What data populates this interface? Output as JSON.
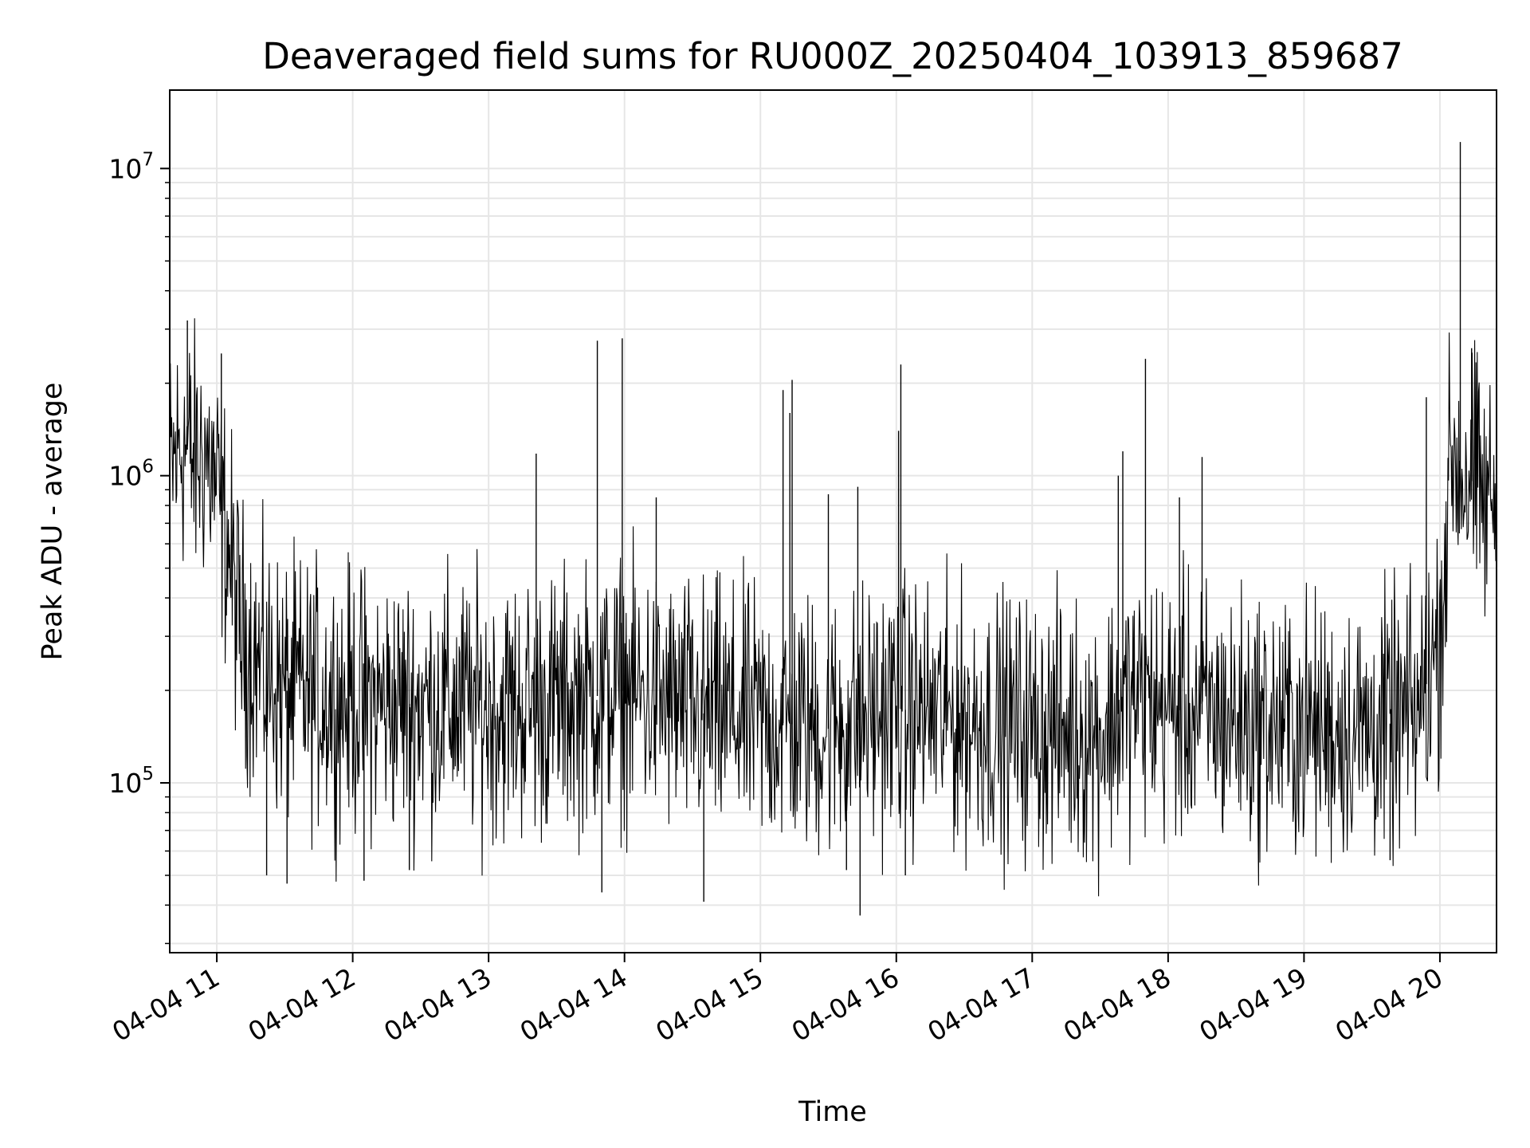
{
  "chart_data": {
    "type": "line",
    "title": "Deaveraged field sums for RU000Z_20250404_103913_859687",
    "xlabel": "Time",
    "ylabel": "Peak ADU - average",
    "y_scale": "log",
    "xlim": [
      "2025-04-04 10:39:13",
      "2025-04-04 20:25:00"
    ],
    "ylim": [
      28000,
      18000000
    ],
    "grid": true,
    "line_color": "#000000",
    "x_ticks": [
      {
        "time": "2025-04-04 11:00",
        "label": "04-04 11"
      },
      {
        "time": "2025-04-04 12:00",
        "label": "04-04 12"
      },
      {
        "time": "2025-04-04 13:00",
        "label": "04-04 13"
      },
      {
        "time": "2025-04-04 14:00",
        "label": "04-04 14"
      },
      {
        "time": "2025-04-04 15:00",
        "label": "04-04 15"
      },
      {
        "time": "2025-04-04 16:00",
        "label": "04-04 16"
      },
      {
        "time": "2025-04-04 17:00",
        "label": "04-04 17"
      },
      {
        "time": "2025-04-04 18:00",
        "label": "04-04 18"
      },
      {
        "time": "2025-04-04 19:00",
        "label": "04-04 19"
      },
      {
        "time": "2025-04-04 20:00",
        "label": "04-04 20"
      }
    ],
    "y_ticks": [
      {
        "value": 100000,
        "base": "10",
        "exponent": "5"
      },
      {
        "value": 1000000,
        "base": "10",
        "exponent": "6"
      },
      {
        "value": 10000000,
        "base": "10",
        "exponent": "7"
      }
    ],
    "series": [
      {
        "points": [
          {
            "time": "2025-04-04 10:39",
            "value": 1000000
          },
          {
            "time": "2025-04-04 10:45",
            "value": 1300000
          },
          {
            "time": "2025-04-04 10:50",
            "value": 1100000
          },
          {
            "time": "2025-04-04 10:55",
            "value": 1200000
          },
          {
            "time": "2025-04-04 11:00",
            "value": 900000
          },
          {
            "time": "2025-04-04 11:05",
            "value": 600000
          },
          {
            "time": "2025-04-04 11:10",
            "value": 320000
          },
          {
            "time": "2025-04-04 11:20",
            "value": 230000
          },
          {
            "time": "2025-04-04 11:30",
            "value": 200000
          },
          {
            "time": "2025-04-04 12:00",
            "value": 185000
          },
          {
            "time": "2025-04-04 12:30",
            "value": 180000
          },
          {
            "time": "2025-04-04 13:00",
            "value": 175000
          },
          {
            "time": "2025-04-04 13:30",
            "value": 180000
          },
          {
            "time": "2025-04-04 14:00",
            "value": 200000
          },
          {
            "time": "2025-04-04 14:30",
            "value": 170000
          },
          {
            "time": "2025-04-04 15:00",
            "value": 160000
          },
          {
            "time": "2025-04-04 15:30",
            "value": 150000
          },
          {
            "time": "2025-04-04 16:00",
            "value": 175000
          },
          {
            "time": "2025-04-04 16:30",
            "value": 160000
          },
          {
            "time": "2025-04-04 17:00",
            "value": 150000
          },
          {
            "time": "2025-04-04 17:30",
            "value": 145000
          },
          {
            "time": "2025-04-04 17:45",
            "value": 190000
          },
          {
            "time": "2025-04-04 18:00",
            "value": 175000
          },
          {
            "time": "2025-04-04 18:30",
            "value": 160000
          },
          {
            "time": "2025-04-04 19:00",
            "value": 150000
          },
          {
            "time": "2025-04-04 19:30",
            "value": 150000
          },
          {
            "time": "2025-04-04 19:50",
            "value": 165000
          },
          {
            "time": "2025-04-04 20:00",
            "value": 300000
          },
          {
            "time": "2025-04-04 20:05",
            "value": 1200000
          },
          {
            "time": "2025-04-04 20:10",
            "value": 1000000
          },
          {
            "time": "2025-04-04 20:15",
            "value": 950000
          },
          {
            "time": "2025-04-04 20:20",
            "value": 800000
          },
          {
            "time": "2025-04-04 20:25",
            "value": 900000
          }
        ],
        "spikes": [
          {
            "time": "2025-04-04 10:47",
            "value": 3200000
          },
          {
            "time": "2025-04-04 11:02",
            "value": 2500000
          },
          {
            "time": "2025-04-04 11:22",
            "value": 50000
          },
          {
            "time": "2025-04-04 11:31",
            "value": 47000
          },
          {
            "time": "2025-04-04 12:05",
            "value": 48000
          },
          {
            "time": "2025-04-04 12:25",
            "value": 52000
          },
          {
            "time": "2025-04-04 13:21",
            "value": 1180000
          },
          {
            "time": "2025-04-04 13:48",
            "value": 2750000
          },
          {
            "time": "2025-04-04 13:50",
            "value": 44000
          },
          {
            "time": "2025-04-04 13:59",
            "value": 2800000
          },
          {
            "time": "2025-04-04 14:14",
            "value": 850000
          },
          {
            "time": "2025-04-04 14:35",
            "value": 41000
          },
          {
            "time": "2025-04-04 15:10",
            "value": 1900000
          },
          {
            "time": "2025-04-04 15:13",
            "value": 1600000
          },
          {
            "time": "2025-04-04 15:14",
            "value": 2050000
          },
          {
            "time": "2025-04-04 15:30",
            "value": 870000
          },
          {
            "time": "2025-04-04 15:38",
            "value": 52000
          },
          {
            "time": "2025-04-04 15:43",
            "value": 920000
          },
          {
            "time": "2025-04-04 15:44",
            "value": 37000
          },
          {
            "time": "2025-04-04 16:01",
            "value": 1400000
          },
          {
            "time": "2025-04-04 16:02",
            "value": 2300000
          },
          {
            "time": "2025-04-04 16:04",
            "value": 50000
          },
          {
            "time": "2025-04-04 17:38",
            "value": 1000000
          },
          {
            "time": "2025-04-04 17:40",
            "value": 1200000
          },
          {
            "time": "2025-04-04 17:50",
            "value": 2400000
          },
          {
            "time": "2025-04-04 18:05",
            "value": 850000
          },
          {
            "time": "2025-04-04 18:15",
            "value": 1150000
          },
          {
            "time": "2025-04-04 19:38",
            "value": 56000
          },
          {
            "time": "2025-04-04 19:54",
            "value": 1800000
          },
          {
            "time": "2025-04-04 20:09",
            "value": 12200000
          },
          {
            "time": "2025-04-04 20:14",
            "value": 2600000
          }
        ]
      }
    ]
  }
}
